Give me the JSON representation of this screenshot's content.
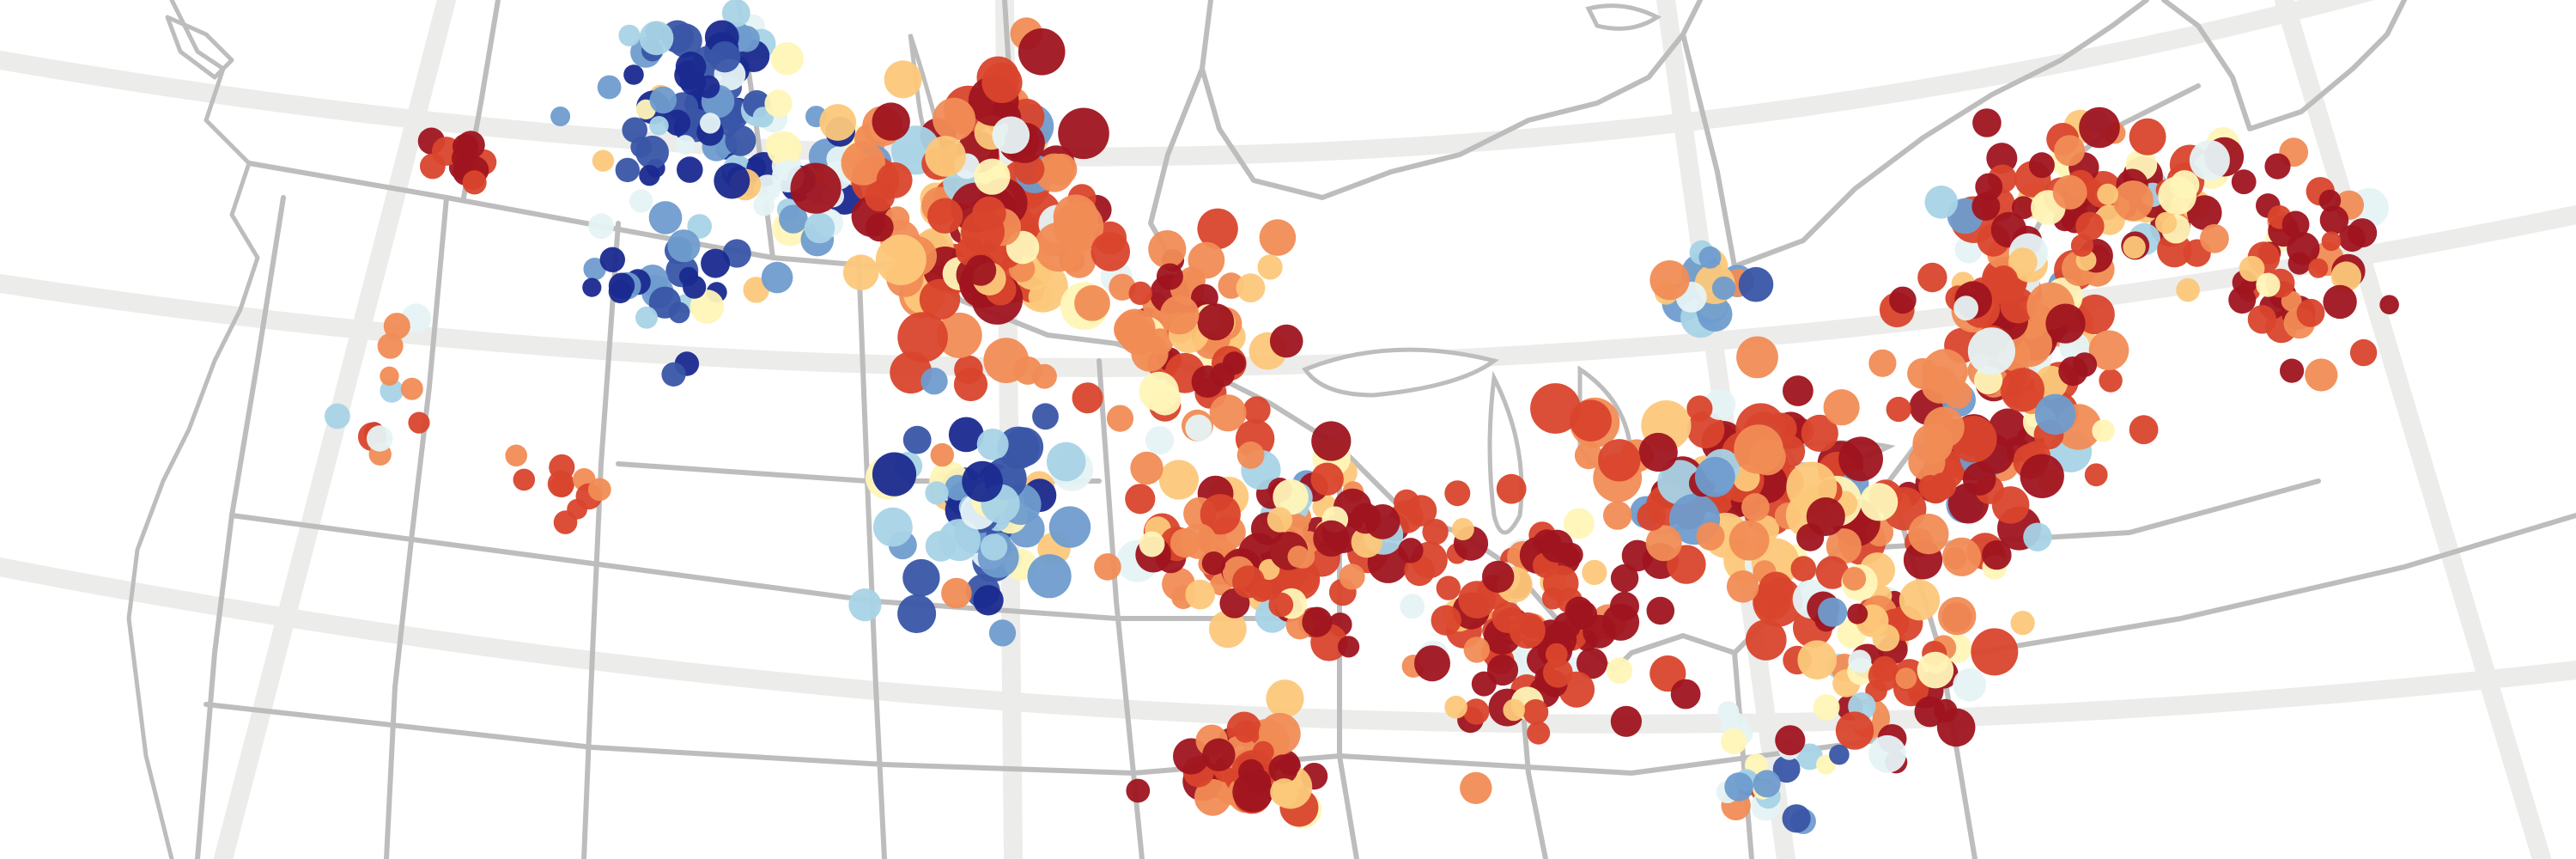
{
  "map": {
    "palette": [
      "#1a2a8f",
      "#3955a6",
      "#6f9ccd",
      "#a8d3e6",
      "#e6f3f5",
      "#fff6b8",
      "#fcc87a",
      "#f18c55",
      "#d9442c",
      "#9f141f"
    ],
    "background": "#ffffff",
    "border_color": "#bdbdbd",
    "graticule_color": "#ececea"
  }
}
